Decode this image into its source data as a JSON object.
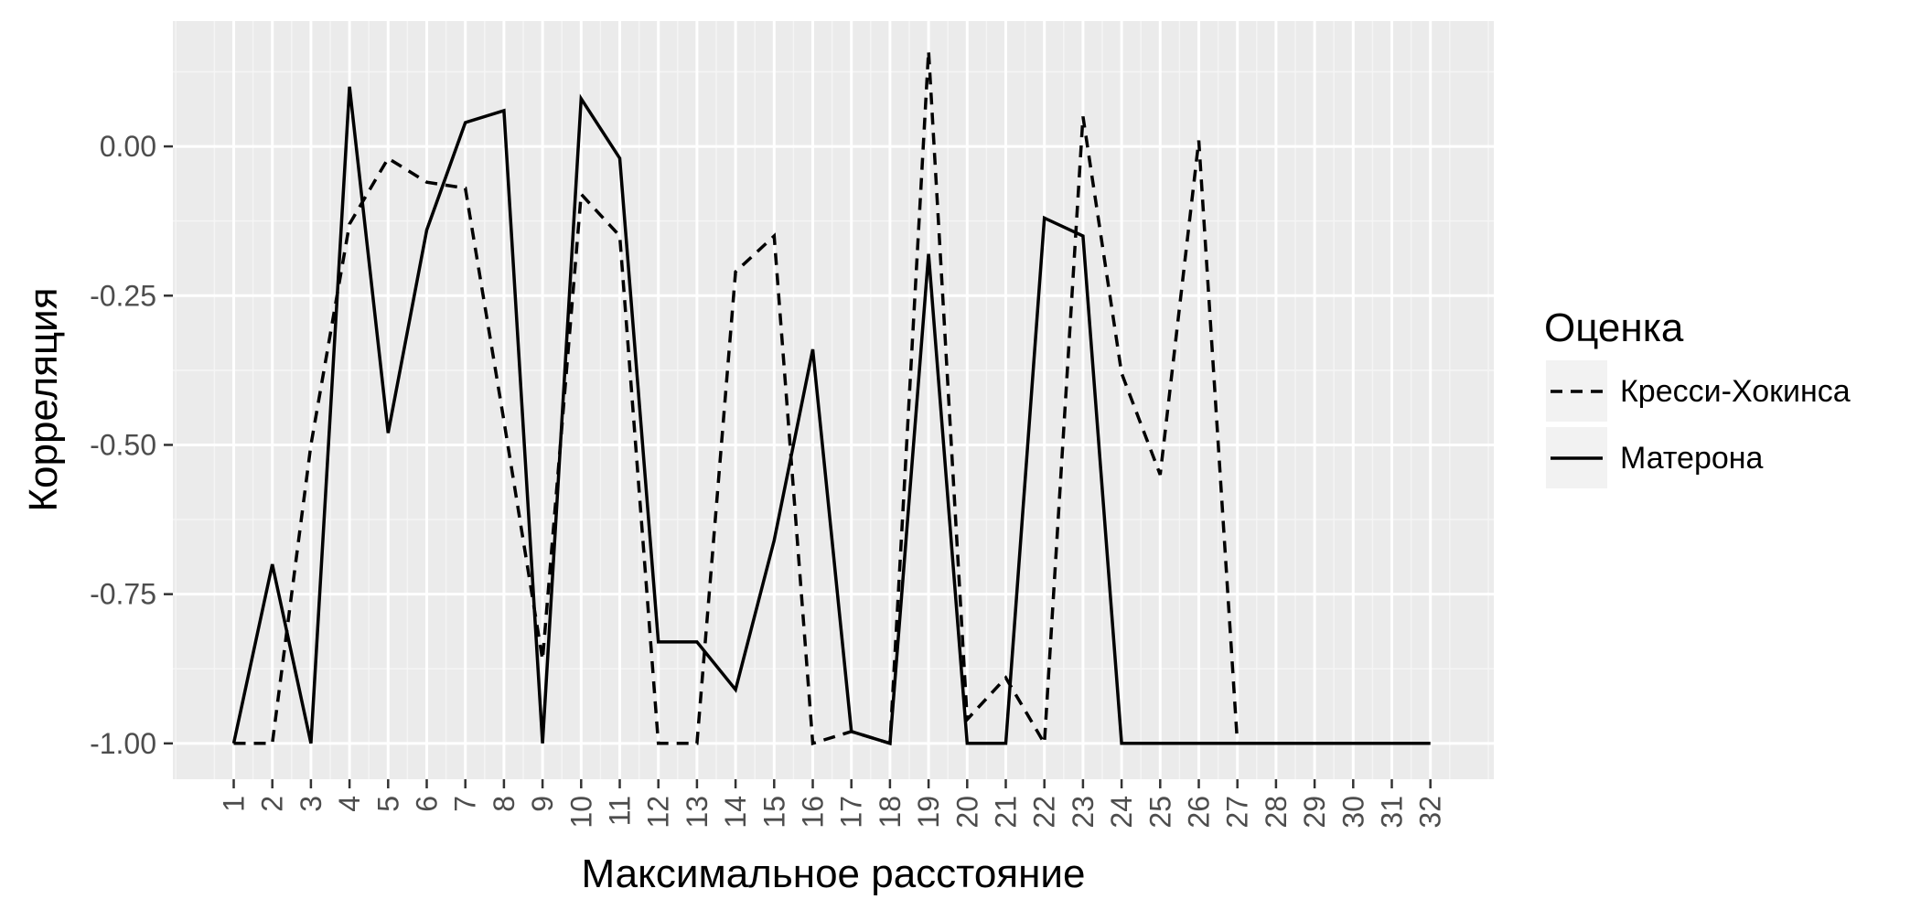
{
  "chart_data": {
    "type": "line",
    "xlabel": "Максимальное расстояние",
    "ylabel": "Корреляция",
    "x": [
      "1",
      "2",
      "3",
      "4",
      "5",
      "6",
      "7",
      "8",
      "9",
      "10",
      "11",
      "12",
      "13",
      "14",
      "15",
      "16",
      "17",
      "18",
      "19",
      "20",
      "21",
      "22",
      "23",
      "24",
      "25",
      "26",
      "27",
      "28",
      "29",
      "30",
      "31",
      "32"
    ],
    "ylim": [
      -1.06,
      0.21
    ],
    "yticks": [
      0.0,
      -0.25,
      -0.5,
      -0.75,
      -1.0
    ],
    "ytick_labels": [
      "0.00",
      "-0.25",
      "-0.50",
      "-0.75",
      "-1.00"
    ],
    "grid": true,
    "legend": {
      "title": "Оценка",
      "position": "right"
    },
    "series": [
      {
        "name": "Кресси-Хокинса",
        "linestyle": "dashed",
        "color": "#000000",
        "values": [
          -1.0,
          -1.0,
          -0.5,
          -0.13,
          -0.02,
          -0.06,
          -0.07,
          -0.46,
          -0.86,
          -0.08,
          -0.15,
          -1.0,
          -1.0,
          -0.21,
          -0.15,
          -1.0,
          -0.98,
          -1.0,
          0.16,
          -0.96,
          -0.89,
          -1.0,
          0.05,
          -0.38,
          -0.55,
          0.01,
          -1.0,
          -1.0,
          -1.0,
          -1.0,
          -1.0,
          -1.0
        ]
      },
      {
        "name": "Матерона",
        "linestyle": "solid",
        "color": "#000000",
        "values": [
          -1.0,
          -0.7,
          -1.0,
          0.1,
          -0.48,
          -0.14,
          0.04,
          0.06,
          -1.0,
          0.08,
          -0.02,
          -0.83,
          -0.83,
          -0.91,
          -0.66,
          -0.34,
          -0.98,
          -1.0,
          -0.18,
          -1.0,
          -1.0,
          -0.12,
          -0.15,
          -1.0,
          -1.0,
          -1.0,
          -1.0,
          -1.0,
          -1.0,
          -1.0,
          -1.0,
          -1.0
        ]
      }
    ]
  }
}
